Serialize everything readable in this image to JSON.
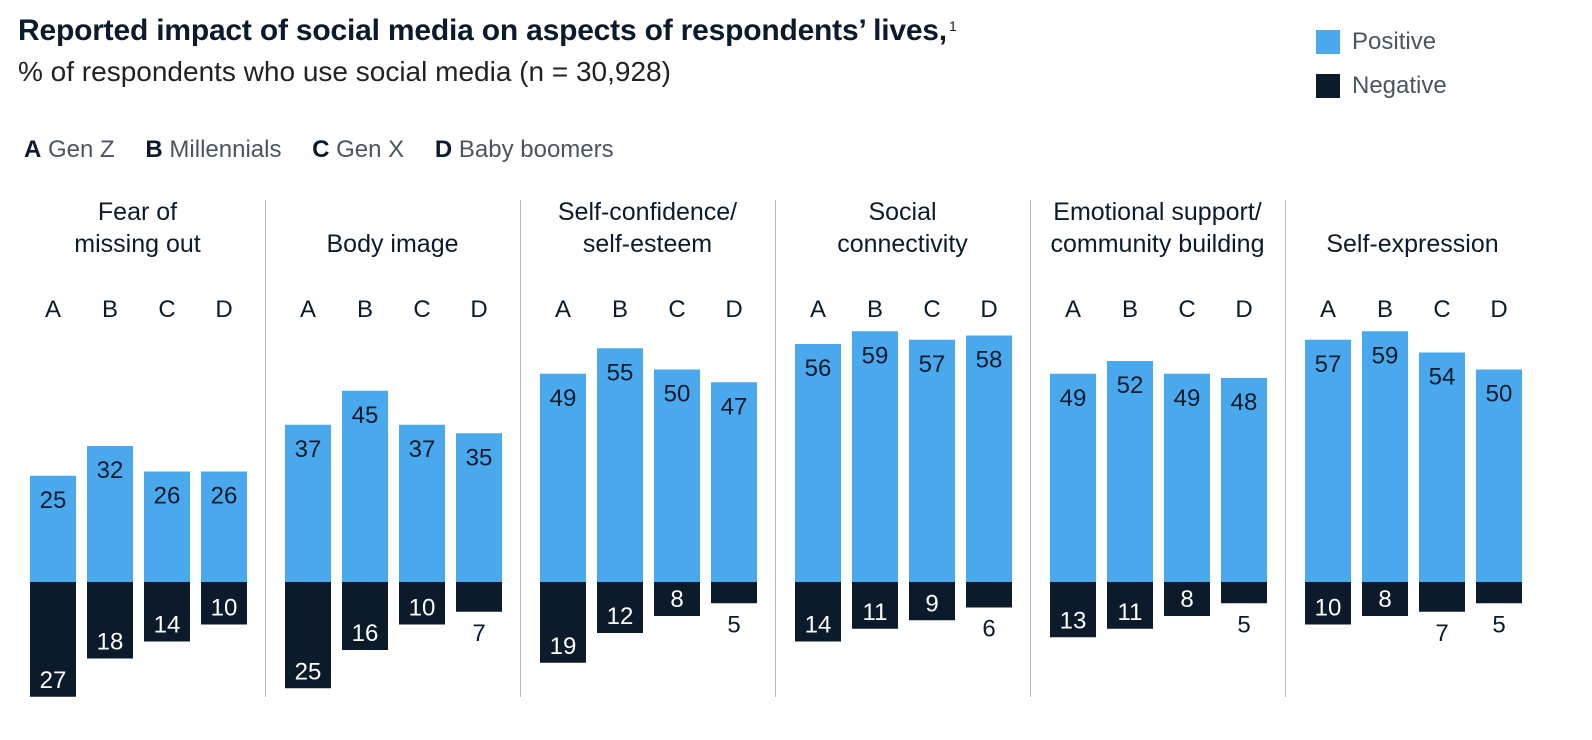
{
  "title": "Reported impact of social media on aspects of respondents’ lives,",
  "title_footnote": "1",
  "subtitle": "% of respondents who use social media (n = 30,928)",
  "legend": [
    {
      "label": "Positive",
      "color": "#4aa8ec"
    },
    {
      "label": "Negative",
      "color": "#0b1b2b"
    }
  ],
  "key": [
    {
      "letter": "A",
      "label": "Gen Z"
    },
    {
      "letter": "B",
      "label": "Millennials"
    },
    {
      "letter": "C",
      "label": "Gen X"
    },
    {
      "letter": "D",
      "label": "Baby boomers"
    }
  ],
  "chart_data": {
    "type": "bar",
    "categories": [
      "A",
      "B",
      "C",
      "D"
    ],
    "groups": [
      {
        "name": [
          "Fear of",
          "missing out"
        ],
        "positive": [
          25,
          32,
          26,
          26
        ],
        "negative": [
          27,
          18,
          14,
          10
        ]
      },
      {
        "name": [
          "Body image"
        ],
        "positive": [
          37,
          45,
          37,
          35
        ],
        "negative": [
          25,
          16,
          10,
          7
        ]
      },
      {
        "name": [
          "Self-confidence/",
          "self-esteem"
        ],
        "positive": [
          49,
          55,
          50,
          47
        ],
        "negative": [
          19,
          12,
          8,
          5
        ]
      },
      {
        "name": [
          "Social",
          "connectivity"
        ],
        "positive": [
          56,
          59,
          57,
          58
        ],
        "negative": [
          14,
          11,
          9,
          6
        ]
      },
      {
        "name": [
          "Emotional support/",
          "community building"
        ],
        "positive": [
          49,
          52,
          49,
          48
        ],
        "negative": [
          13,
          11,
          8,
          5
        ]
      },
      {
        "name": [
          "Self-expression"
        ],
        "positive": [
          57,
          59,
          54,
          50
        ],
        "negative": [
          10,
          8,
          7,
          5
        ]
      }
    ],
    "colors": {
      "positive": "#4aa8ec",
      "negative": "#0b1b2b",
      "divider": "#b9bec4"
    }
  }
}
